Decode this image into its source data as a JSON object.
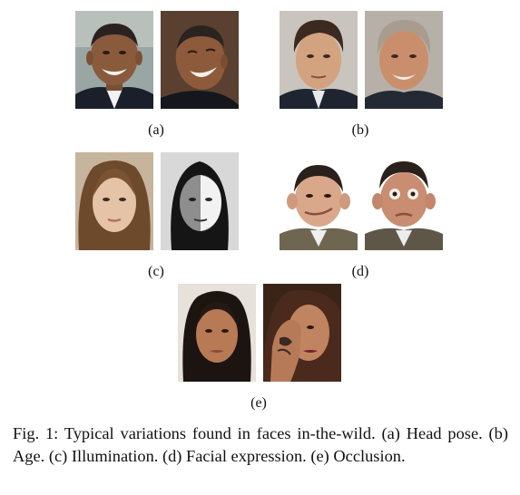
{
  "figure": {
    "panels": [
      {
        "label": "(a)"
      },
      {
        "label": "(b)"
      },
      {
        "label": "(c)"
      },
      {
        "label": "(d)"
      },
      {
        "label": "(e)"
      }
    ],
    "caption": "Fig. 1: Typical variations found in faces in-the-wild. (a) Head pose. (b) Age. (c) Illumination. (d) Facial expression. (e) Occlusion."
  },
  "colors": {
    "background": "#ffffff",
    "text": "#111111"
  }
}
